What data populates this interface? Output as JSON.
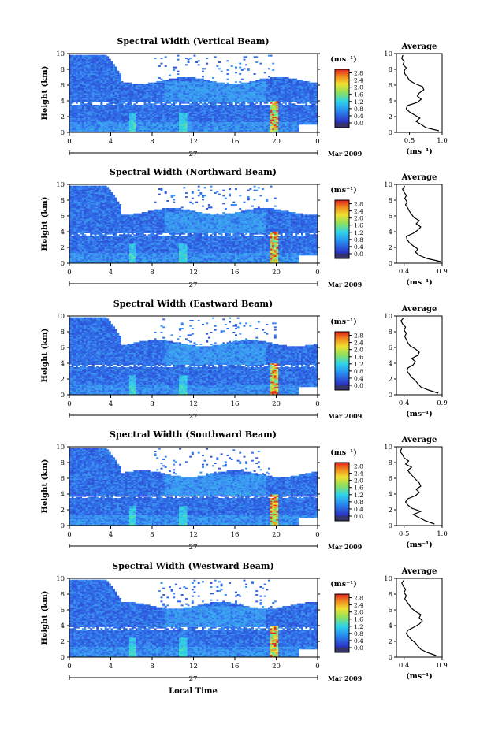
{
  "chart_data": [
    {
      "type": "heatmap",
      "title": "Spectral Width (Vertical Beam)",
      "xlabel": "",
      "ylabel": "Height (km)",
      "xlim": [
        0,
        24
      ],
      "ylim": [
        0,
        10
      ],
      "x_ticks": [
        "0",
        "4",
        "8",
        "12",
        "16",
        "20",
        "0"
      ],
      "y_ticks": [
        "0",
        "2",
        "4",
        "6",
        "8",
        "10"
      ],
      "date_day": "27",
      "date_label": "Mar 2009",
      "colorbar": {
        "unit": "(ms⁻¹)",
        "ticks": [
          "0.0",
          "0.4",
          "0.8",
          "1.2",
          "1.6",
          "2.0",
          "2.4",
          "2.8"
        ],
        "range": [
          0,
          3.0
        ]
      },
      "average": {
        "title": "Average",
        "xlabel": "(ms⁻¹)",
        "xlim": [
          0.3,
          1.0
        ],
        "x_ticks": [
          "0.5",
          "1.0"
        ],
        "y_ticks": [
          "0",
          "2",
          "4",
          "6",
          "8",
          "10"
        ],
        "height": [
          0.2,
          0.6,
          1.0,
          1.4,
          1.8,
          2.2,
          2.6,
          3.0,
          3.4,
          3.8,
          4.2,
          4.6,
          5.0,
          5.4,
          5.8,
          6.2,
          6.6,
          7.0,
          7.4,
          7.8,
          8.2,
          8.6,
          9.0,
          9.4,
          9.8
        ],
        "width": [
          0.95,
          0.75,
          0.68,
          0.6,
          0.66,
          0.58,
          0.5,
          0.45,
          0.47,
          0.62,
          0.68,
          0.62,
          0.65,
          0.72,
          0.7,
          0.58,
          0.5,
          0.47,
          0.43,
          0.42,
          0.45,
          0.4,
          0.42,
          0.38,
          0.4
        ]
      }
    },
    {
      "type": "heatmap",
      "title": "Spectral Width (Northward Beam)",
      "xlabel": "",
      "ylabel": "Height (km)",
      "xlim": [
        0,
        24
      ],
      "ylim": [
        0,
        10
      ],
      "x_ticks": [
        "0",
        "4",
        "8",
        "12",
        "16",
        "20",
        "0"
      ],
      "y_ticks": [
        "0",
        "2",
        "4",
        "6",
        "8",
        "10"
      ],
      "date_day": "27",
      "date_label": "Mar 2009",
      "colorbar": {
        "unit": "(ms⁻¹)",
        "ticks": [
          "0.0",
          "0.4",
          "0.8",
          "1.2",
          "1.6",
          "2.0",
          "2.4",
          "2.8"
        ],
        "range": [
          0,
          3.0
        ]
      },
      "average": {
        "title": "Average",
        "xlabel": "(ms⁻¹)",
        "xlim": [
          0.3,
          0.9
        ],
        "x_ticks": [
          "0.4",
          "0.9"
        ],
        "y_ticks": [
          "0",
          "2",
          "4",
          "6",
          "8",
          "10"
        ],
        "height": [
          0.2,
          0.6,
          1.0,
          1.4,
          1.8,
          2.2,
          2.6,
          3.0,
          3.4,
          3.8,
          4.2,
          4.6,
          5.0,
          5.4,
          5.8,
          6.2,
          6.6,
          7.0,
          7.4,
          7.8,
          8.2,
          8.6,
          9.0,
          9.4,
          9.8
        ],
        "width": [
          0.88,
          0.7,
          0.6,
          0.55,
          0.58,
          0.52,
          0.47,
          0.44,
          0.43,
          0.52,
          0.58,
          0.62,
          0.56,
          0.6,
          0.53,
          0.5,
          0.47,
          0.45,
          0.42,
          0.44,
          0.41,
          0.43,
          0.4,
          0.38,
          0.41
        ]
      }
    },
    {
      "type": "heatmap",
      "title": "Spectral Width (Eastward Beam)",
      "xlabel": "",
      "ylabel": "Height (km)",
      "xlim": [
        0,
        24
      ],
      "ylim": [
        0,
        10
      ],
      "x_ticks": [
        "0",
        "4",
        "8",
        "12",
        "16",
        "20",
        "0"
      ],
      "y_ticks": [
        "0",
        "2",
        "4",
        "6",
        "8",
        "10"
      ],
      "date_day": "27",
      "date_label": "Mar 2009",
      "colorbar": {
        "unit": "(ms⁻¹)",
        "ticks": [
          "0.0",
          "0.4",
          "0.8",
          "1.2",
          "1.6",
          "2.0",
          "2.4",
          "2.8"
        ],
        "range": [
          0,
          3.0
        ]
      },
      "average": {
        "title": "Average",
        "xlabel": "(ms⁻¹)",
        "xlim": [
          0.3,
          0.9
        ],
        "x_ticks": [
          "0.4",
          "0.9"
        ],
        "y_ticks": [
          "0",
          "2",
          "4",
          "6",
          "8",
          "10"
        ],
        "height": [
          0.2,
          0.6,
          1.0,
          1.4,
          1.8,
          2.2,
          2.6,
          3.0,
          3.4,
          3.8,
          4.2,
          4.6,
          5.0,
          5.4,
          5.8,
          6.2,
          6.6,
          7.0,
          7.4,
          7.8,
          8.2,
          8.6,
          9.0,
          9.4,
          9.8
        ],
        "width": [
          0.85,
          0.72,
          0.62,
          0.58,
          0.55,
          0.5,
          0.47,
          0.44,
          0.45,
          0.52,
          0.55,
          0.5,
          0.58,
          0.6,
          0.55,
          0.48,
          0.45,
          0.43,
          0.41,
          0.43,
          0.4,
          0.42,
          0.38,
          0.36,
          0.4
        ]
      }
    },
    {
      "type": "heatmap",
      "title": "Spectral Width (Southward Beam)",
      "xlabel": "",
      "ylabel": "Height (km)",
      "xlim": [
        0,
        24
      ],
      "ylim": [
        0,
        10
      ],
      "x_ticks": [
        "0",
        "4",
        "8",
        "12",
        "16",
        "20",
        "0"
      ],
      "y_ticks": [
        "0",
        "2",
        "4",
        "6",
        "8",
        "10"
      ],
      "date_day": "27",
      "date_label": "Mar 2009",
      "colorbar": {
        "unit": "(ms⁻¹)",
        "ticks": [
          "0.0",
          "0.4",
          "0.8",
          "1.2",
          "1.6",
          "2.0",
          "2.4",
          "2.8"
        ],
        "range": [
          0,
          3.0
        ]
      },
      "average": {
        "title": "Average",
        "xlabel": "(ms⁻¹)",
        "xlim": [
          0.4,
          1.0
        ],
        "x_ticks": [
          "0.5",
          "1.0"
        ],
        "y_ticks": [
          "0",
          "2",
          "4",
          "6",
          "8",
          "10"
        ],
        "height": [
          0.2,
          0.6,
          1.0,
          1.4,
          1.8,
          2.2,
          2.6,
          3.0,
          3.4,
          3.8,
          4.2,
          4.6,
          5.0,
          5.4,
          5.8,
          6.2,
          6.6,
          7.0,
          7.4,
          7.8,
          8.2,
          8.6,
          9.0,
          9.4,
          9.8
        ],
        "width": [
          0.9,
          0.78,
          0.7,
          0.62,
          0.72,
          0.6,
          0.55,
          0.52,
          0.55,
          0.65,
          0.7,
          0.66,
          0.72,
          0.7,
          0.66,
          0.62,
          0.58,
          0.55,
          0.6,
          0.52,
          0.56,
          0.5,
          0.48,
          0.45,
          0.47
        ]
      }
    },
    {
      "type": "heatmap",
      "title": "Spectral Width (Westward Beam)",
      "xlabel": "Local Time",
      "ylabel": "Height (km)",
      "xlim": [
        0,
        24
      ],
      "ylim": [
        0,
        10
      ],
      "x_ticks": [
        "0",
        "4",
        "8",
        "12",
        "16",
        "20",
        "0"
      ],
      "y_ticks": [
        "0",
        "2",
        "4",
        "6",
        "8",
        "10"
      ],
      "date_day": "27",
      "date_label": "Mar 2009",
      "colorbar": {
        "unit": "(ms⁻¹)",
        "ticks": [
          "0.0",
          "0.4",
          "0.8",
          "1.2",
          "1.6",
          "2.0",
          "2.4",
          "2.8"
        ],
        "range": [
          0,
          3.0
        ]
      },
      "average": {
        "title": "Average",
        "xlabel": "(ms⁻¹)",
        "xlim": [
          0.3,
          0.9
        ],
        "x_ticks": [
          "0.4",
          "0.9"
        ],
        "y_ticks": [
          "0",
          "2",
          "4",
          "6",
          "8",
          "10"
        ],
        "height": [
          0.2,
          0.6,
          1.0,
          1.4,
          1.8,
          2.2,
          2.6,
          3.0,
          3.4,
          3.8,
          4.2,
          4.6,
          5.0,
          5.4,
          5.8,
          6.2,
          6.6,
          7.0,
          7.4,
          7.8,
          8.2,
          8.6,
          9.0,
          9.4,
          9.8
        ],
        "width": [
          0.82,
          0.7,
          0.62,
          0.58,
          0.55,
          0.5,
          0.46,
          0.43,
          0.45,
          0.53,
          0.6,
          0.64,
          0.6,
          0.62,
          0.55,
          0.5,
          0.47,
          0.44,
          0.41,
          0.43,
          0.4,
          0.42,
          0.39,
          0.37,
          0.4
        ]
      }
    }
  ]
}
